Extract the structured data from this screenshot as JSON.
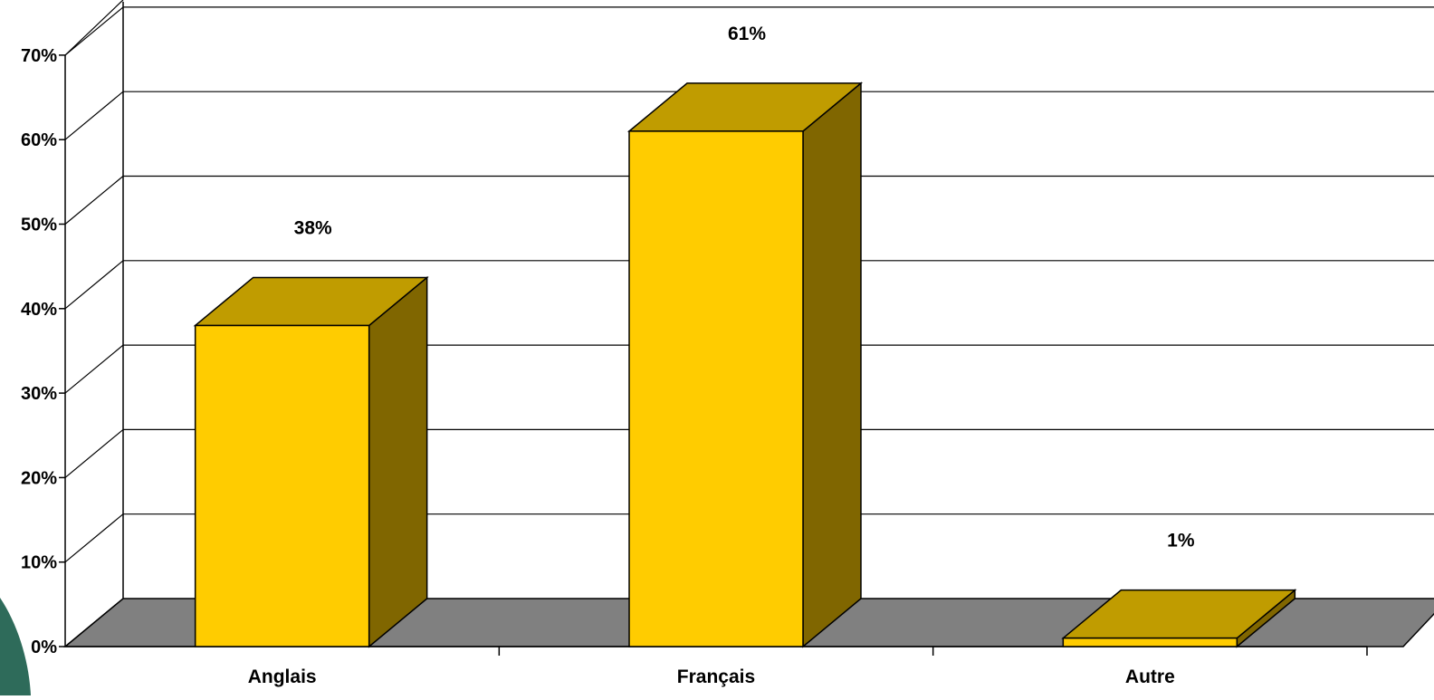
{
  "chart_data": {
    "type": "bar",
    "style": "3d",
    "categories": [
      "Anglais",
      "Français",
      "Autre"
    ],
    "values": [
      38,
      61,
      1
    ],
    "data_labels": [
      "38%",
      "61%",
      "1%"
    ],
    "ylim": [
      0,
      70
    ],
    "yticks": [
      0,
      10,
      20,
      30,
      40,
      50,
      60,
      70
    ],
    "ytick_labels": [
      "0%",
      "10%",
      "20%",
      "30%",
      "40%",
      "50%",
      "60%",
      "70%"
    ],
    "grid": true,
    "legend": false,
    "title": "",
    "xlabel": "",
    "ylabel": ""
  },
  "colors": {
    "bar_front": "#FFCC00",
    "bar_top": "#C09C00",
    "bar_side": "#806600",
    "floor": "#808080",
    "gridline": "#000000",
    "corner_decoration": "#2E6B5A"
  }
}
